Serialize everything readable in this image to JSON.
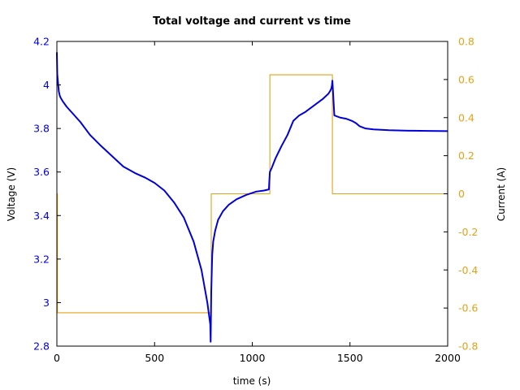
{
  "chart_data": {
    "type": "line",
    "title": "Total voltage and current vs time",
    "xlabel": "time (s)",
    "ylabel_left": "Voltage (V)",
    "ylabel_right": "Current (A)",
    "xlim": [
      0,
      2000
    ],
    "ylim_left": [
      2.8,
      4.2
    ],
    "ylim_right": [
      -0.8,
      0.8
    ],
    "x_ticks": [
      "0",
      "500",
      "1000",
      "1500",
      "2000"
    ],
    "left_ticks": [
      "2.8",
      "3",
      "3.2",
      "3.4",
      "3.6",
      "3.8",
      "4",
      "4.2"
    ],
    "right_ticks": [
      "-0.8",
      "-0.6",
      "-0.4",
      "-0.2",
      "0",
      "0.2",
      "0.4",
      "0.6",
      "0.8"
    ],
    "grid": false,
    "colors": {
      "voltage": "#0000dd",
      "current": "#e6a117",
      "left_axis_text": "#0000dd",
      "right_axis_text": "#e6a117"
    },
    "series": [
      {
        "axis": "left",
        "x": [
          0,
          2,
          5,
          10,
          15,
          20,
          30,
          50,
          80,
          120,
          170,
          220,
          280,
          340,
          400,
          450,
          500,
          550,
          600,
          650,
          700,
          740,
          770,
          785,
          787,
          790,
          795,
          800,
          810,
          825,
          850,
          880,
          920,
          970,
          1020,
          1060,
          1085,
          1088,
          1090,
          1100,
          1120,
          1150,
          1180,
          1210,
          1240,
          1270,
          1300,
          1330,
          1360,
          1390,
          1400,
          1405,
          1408,
          1410,
          1420,
          1450,
          1480,
          1510,
          1530,
          1550,
          1580,
          1620,
          1700,
          1800,
          1900,
          2000
        ],
        "y": [
          4.15,
          4.05,
          4.02,
          3.97,
          3.95,
          3.94,
          3.925,
          3.9,
          3.87,
          3.83,
          3.77,
          3.725,
          3.675,
          3.625,
          3.595,
          3.575,
          3.55,
          3.515,
          3.46,
          3.39,
          3.28,
          3.15,
          3.0,
          2.9,
          2.82,
          3.05,
          3.22,
          3.28,
          3.33,
          3.38,
          3.42,
          3.45,
          3.475,
          3.495,
          3.51,
          3.515,
          3.52,
          3.57,
          3.6,
          3.62,
          3.665,
          3.72,
          3.77,
          3.835,
          3.86,
          3.875,
          3.895,
          3.915,
          3.935,
          3.96,
          3.975,
          3.985,
          4.0,
          4.02,
          3.86,
          3.85,
          3.845,
          3.835,
          3.825,
          3.81,
          3.8,
          3.796,
          3.792,
          3.79,
          3.789,
          3.788
        ]
      },
      {
        "axis": "right",
        "x": [
          0,
          3,
          3,
          790,
          790,
          1090,
          1090,
          1410,
          1410,
          2000
        ],
        "y": [
          0.0,
          0.0,
          -0.625,
          -0.625,
          0.0,
          0.0,
          0.625,
          0.625,
          0.0,
          0.0
        ]
      }
    ]
  }
}
